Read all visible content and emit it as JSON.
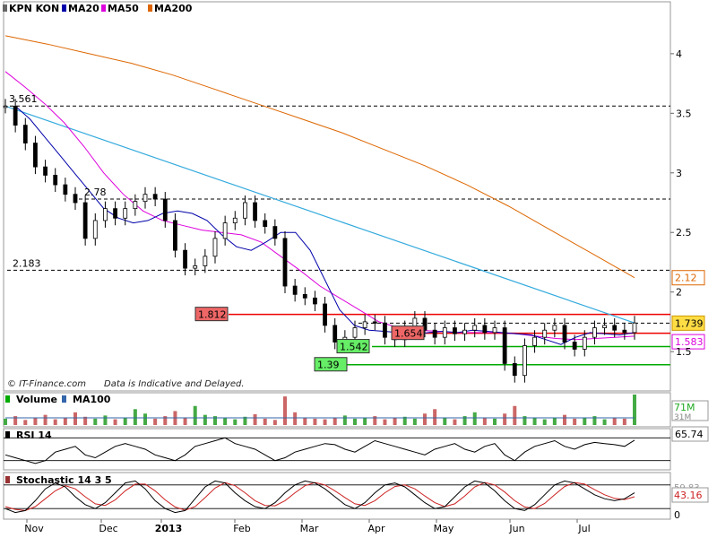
{
  "chart_data": {
    "type": "line",
    "title": "KPN KON",
    "footer": {
      "copyright": "© IT-Finance.com",
      "disclaimer": "Data is Indicative and Delayed."
    },
    "x_ticks": [
      "Nov",
      "Dec",
      "2013",
      "Feb",
      "Mar",
      "Apr",
      "May",
      "Jun",
      "Jul"
    ],
    "price": {
      "ylim": [
        1.2,
        4.3
      ],
      "y_ticks": [
        1.5,
        2,
        2.5,
        3,
        3.5,
        4
      ],
      "y_tick_labels": [
        "1.5",
        "2",
        "2.5",
        "3",
        "3.5",
        "4"
      ],
      "legend": [
        {
          "name": "KPN KON",
          "color": "#666666"
        },
        {
          "name": "MA20",
          "color": "#0000aa"
        },
        {
          "name": "MA50",
          "color": "#dd00dd"
        },
        {
          "name": "MA200",
          "color": "#dd6600"
        }
      ],
      "close": [
        3.56,
        3.4,
        3.25,
        3.05,
        2.98,
        2.9,
        2.82,
        2.75,
        2.45,
        2.6,
        2.7,
        2.62,
        2.7,
        2.76,
        2.82,
        2.78,
        2.6,
        2.35,
        2.2,
        2.22,
        2.3,
        2.45,
        2.58,
        2.62,
        2.75,
        2.6,
        2.55,
        2.45,
        2.05,
        1.98,
        1.95,
        1.9,
        1.72,
        1.58,
        1.62,
        1.7,
        1.75,
        1.74,
        1.62,
        1.6,
        1.7,
        1.78,
        1.68,
        1.62,
        1.7,
        1.65,
        1.68,
        1.72,
        1.66,
        1.7,
        1.4,
        1.3,
        1.55,
        1.62,
        1.68,
        1.72,
        1.58,
        1.52,
        1.62,
        1.7,
        1.72,
        1.68,
        1.66,
        1.74
      ],
      "ma20": [
        3.56,
        3.45,
        3.3,
        3.15,
        3.0,
        2.85,
        2.7,
        2.62,
        2.58,
        2.6,
        2.66,
        2.68,
        2.66,
        2.6,
        2.48,
        2.38,
        2.35,
        2.42,
        2.5,
        2.5,
        2.35,
        2.1,
        1.85,
        1.72,
        1.68,
        1.67,
        1.66,
        1.64,
        1.66,
        1.67,
        1.66,
        1.68,
        1.67,
        1.66,
        1.65,
        1.64,
        1.6,
        1.56,
        1.62,
        1.66,
        1.65,
        1.64,
        1.66
      ],
      "ma50": [
        3.85,
        3.72,
        3.58,
        3.42,
        3.22,
        3.0,
        2.82,
        2.68,
        2.6,
        2.56,
        2.52,
        2.5,
        2.48,
        2.42,
        2.3,
        2.18,
        2.05,
        1.95,
        1.85,
        1.75,
        1.7,
        1.68,
        1.67,
        1.66,
        1.66,
        1.66,
        1.65,
        1.63,
        1.61,
        1.6,
        1.61,
        1.62,
        1.63
      ],
      "ma200": [
        4.15,
        4.08,
        4.0,
        3.92,
        3.82,
        3.7,
        3.58,
        3.46,
        3.34,
        3.2,
        3.06,
        2.9,
        2.72,
        2.52,
        2.32,
        2.12
      ],
      "levels": [
        {
          "value": 3.561,
          "label": "3.561",
          "style": "dashed",
          "color": "#000000"
        },
        {
          "value": 2.78,
          "label": "2.78",
          "style": "dashed",
          "color": "#000000"
        },
        {
          "value": 2.183,
          "label": "2.183",
          "style": "dashed",
          "color": "#000000"
        },
        {
          "value": 1.812,
          "label": "1.812",
          "style": "solid",
          "color": "#ee0000",
          "box": "#ee6666"
        },
        {
          "value": 1.739,
          "label": "1.739",
          "style": "dashed",
          "color": "#000000",
          "box": "#ffdd44"
        },
        {
          "value": 1.654,
          "label": "1.654",
          "style": "solid",
          "color": "#ee0000",
          "box": "#ee6666"
        },
        {
          "value": 1.542,
          "label": "1.542",
          "style": "solid",
          "color": "#00aa00",
          "box": "#66ee66"
        },
        {
          "value": 1.39,
          "label": "1.39",
          "style": "solid",
          "color": "#00aa00",
          "box": "#66ee66"
        }
      ],
      "right_labels": [
        {
          "value": 2.12,
          "label": "2.12",
          "color": "#dd6600"
        },
        {
          "value": 1.583,
          "label": "1.583",
          "color": "#dd00dd"
        }
      ],
      "trendline": {
        "from": [
          0,
          3.56
        ],
        "to": [
          63,
          1.74
        ],
        "color": "#33aadd"
      }
    },
    "volume": {
      "legend": [
        {
          "name": "Volume",
          "color": "#00aa00"
        },
        {
          "name": "MA100",
          "color": "#3366aa"
        }
      ],
      "right_label_top": "71M",
      "right_label_bottom": "31M",
      "values": [
        10,
        14,
        8,
        12,
        16,
        9,
        11,
        20,
        13,
        10,
        15,
        9,
        12,
        25,
        18,
        10,
        14,
        22,
        12,
        30,
        16,
        14,
        11,
        9,
        13,
        17,
        10,
        8,
        45,
        20,
        12,
        10,
        9,
        11,
        15,
        10,
        12,
        14,
        9,
        11,
        13,
        10,
        18,
        25,
        12,
        9,
        14,
        20,
        12,
        10,
        18,
        30,
        14,
        12,
        9,
        11,
        16,
        10,
        12,
        14,
        9,
        11,
        10,
        48
      ]
    },
    "rsi": {
      "label": "RSI 14",
      "value_label": "65.74",
      "values": [
        40,
        35,
        30,
        25,
        30,
        45,
        50,
        55,
        40,
        35,
        45,
        55,
        60,
        55,
        50,
        40,
        35,
        30,
        40,
        55,
        60,
        65,
        70,
        60,
        55,
        50,
        40,
        30,
        35,
        45,
        50,
        55,
        60,
        58,
        50,
        45,
        55,
        65,
        60,
        55,
        50,
        45,
        40,
        50,
        55,
        60,
        50,
        45,
        55,
        60,
        40,
        30,
        45,
        55,
        60,
        65,
        55,
        50,
        58,
        62,
        60,
        58,
        55,
        66
      ]
    },
    "stochastic": {
      "label": "Stochastic 14 3 5",
      "value_label_top": "59.83",
      "value_label": "43.16",
      "y_tick_label": "0",
      "k": [
        20,
        10,
        15,
        40,
        70,
        85,
        75,
        50,
        30,
        20,
        35,
        60,
        85,
        90,
        70,
        40,
        20,
        10,
        15,
        45,
        75,
        90,
        85,
        60,
        40,
        25,
        20,
        35,
        60,
        80,
        90,
        85,
        70,
        50,
        30,
        20,
        35,
        60,
        80,
        85,
        75,
        55,
        35,
        20,
        25,
        50,
        75,
        90,
        85,
        65,
        40,
        20,
        15,
        30,
        55,
        80,
        90,
        85,
        70,
        55,
        45,
        40,
        45,
        60
      ],
      "d": [
        25,
        18,
        15,
        25,
        45,
        65,
        78,
        70,
        50,
        32,
        28,
        42,
        65,
        82,
        82,
        65,
        42,
        24,
        16,
        25,
        48,
        72,
        86,
        78,
        60,
        40,
        28,
        27,
        40,
        60,
        78,
        86,
        80,
        65,
        48,
        32,
        28,
        40,
        60,
        76,
        80,
        70,
        52,
        35,
        25,
        32,
        52,
        75,
        86,
        80,
        62,
        40,
        24,
        20,
        33,
        55,
        76,
        86,
        82,
        68,
        55,
        46,
        43,
        50
      ]
    },
    "colors": {
      "up": "#ffffff",
      "down": "#000000",
      "vol_up": "#44aa44",
      "vol_down": "#cc6666",
      "rsi": "#000000",
      "stoch_k": "#000000",
      "stoch_d": "#cc2222"
    }
  }
}
